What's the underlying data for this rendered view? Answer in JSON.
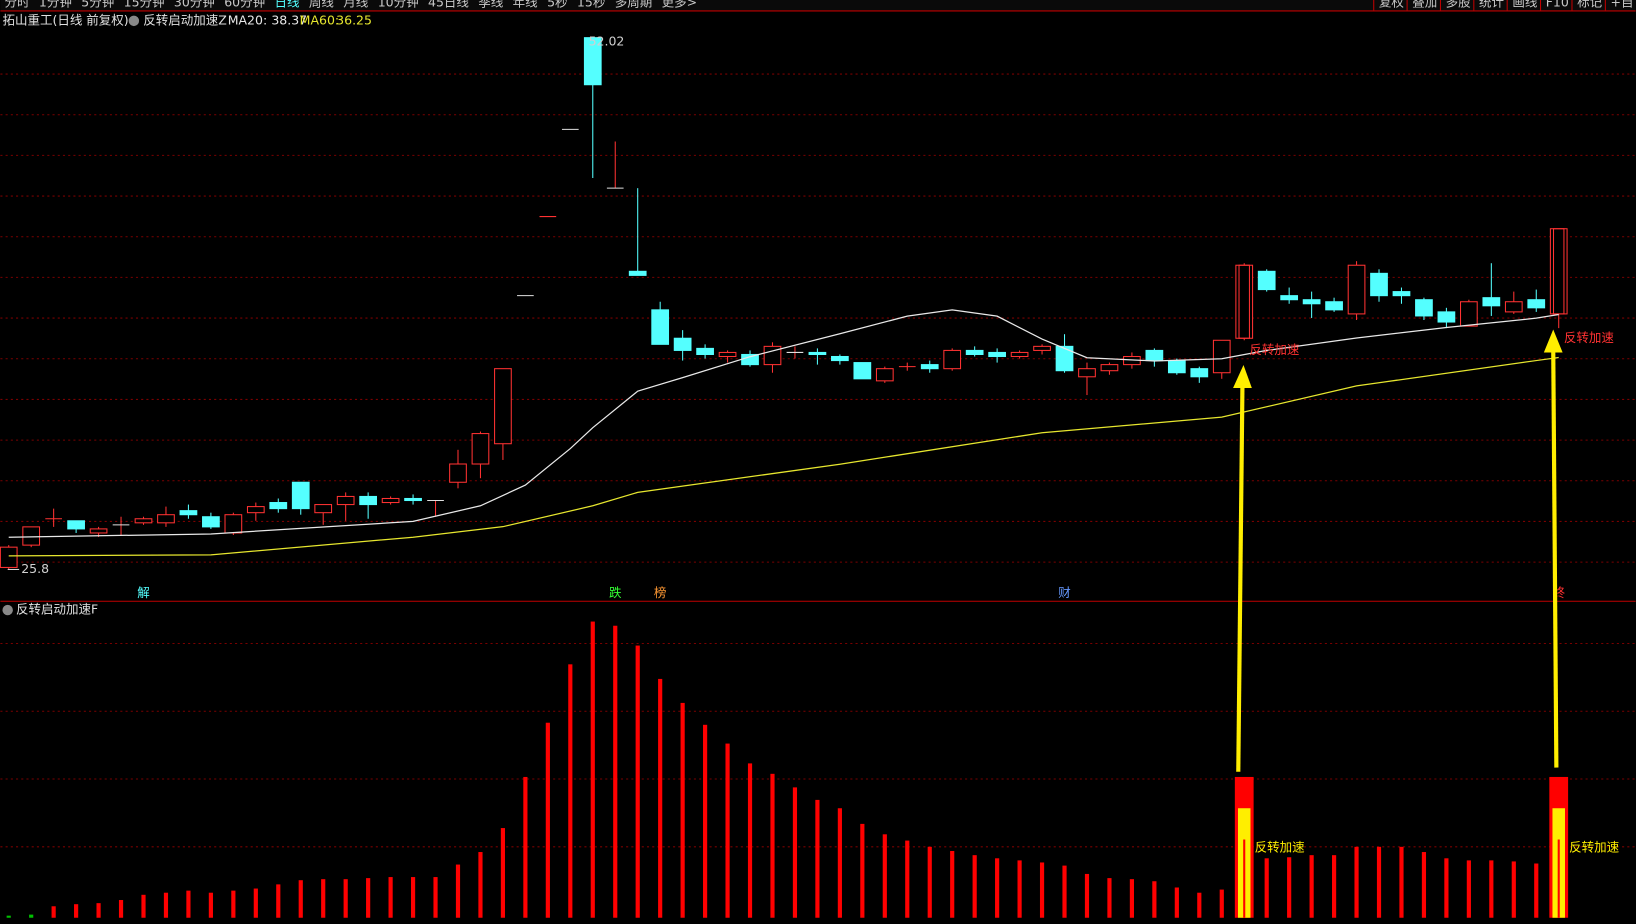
{
  "toolbar": {
    "left": [
      "分时",
      "1分钟",
      "5分钟",
      "15分钟",
      "30分钟",
      "60分钟",
      "日线",
      "周线",
      "月线",
      "10分钟",
      "45日线",
      "季线",
      "年线",
      "5秒",
      "15秒",
      "多周期",
      "更多>"
    ],
    "active": 6,
    "right": [
      "复权",
      "叠加",
      "多股",
      "统计",
      "画线",
      "F10",
      "标记",
      "+自"
    ]
  },
  "chart_data": [
    {
      "type": "candlestick",
      "title": "拓山重工(日线 前复权)",
      "indicator": "反转启动加速Z",
      "up_color": "#ff3232",
      "down_color": "#54ffff",
      "open": [
        25.9,
        27.0,
        28.3,
        28.2,
        27.6,
        28.0,
        28.1,
        28.1,
        28.7,
        28.4,
        27.6,
        28.6,
        29.1,
        30.1,
        28.6,
        29.0,
        29.4,
        29.1,
        29.3,
        29.2,
        30.1,
        31.0,
        32.0,
        39.3,
        43.2,
        47.5,
        52.02,
        44.6,
        40.5,
        38.6,
        37.2,
        36.7,
        36.3,
        36.4,
        35.9,
        36.5,
        36.5,
        36.3,
        36.0,
        35.1,
        35.8,
        35.9,
        35.7,
        36.6,
        36.5,
        36.3,
        36.6,
        36.8,
        35.3,
        35.6,
        35.9,
        36.6,
        36.1,
        35.7,
        35.5,
        37.2,
        40.5,
        39.3,
        39.1,
        39.0,
        38.4,
        40.4,
        39.5,
        39.1,
        38.5,
        37.8,
        39.2,
        38.5,
        39.1,
        38.4
      ],
      "high": [
        27.0,
        27.9,
        28.8,
        28.2,
        27.9,
        28.4,
        28.4,
        28.9,
        29.0,
        28.6,
        28.6,
        29.1,
        29.3,
        30.1,
        29.0,
        29.6,
        29.6,
        29.4,
        29.5,
        29.2,
        31.7,
        32.6,
        35.7,
        39.3,
        43.2,
        47.5,
        52.02,
        46.9,
        44.6,
        39.0,
        37.6,
        36.9,
        36.6,
        36.6,
        37.0,
        36.8,
        36.7,
        36.4,
        36.0,
        35.8,
        36.0,
        36.1,
        36.7,
        36.8,
        36.7,
        36.6,
        36.9,
        37.4,
        36.0,
        36.0,
        36.5,
        36.7,
        36.2,
        35.8,
        37.1,
        40.9,
        40.6,
        39.7,
        39.5,
        39.2,
        41.0,
        40.6,
        39.7,
        39.2,
        38.7,
        39.1,
        40.9,
        39.5,
        39.6,
        42.6
      ],
      "low": [
        25.8,
        26.9,
        27.9,
        27.6,
        27.4,
        27.5,
        28.0,
        27.9,
        28.3,
        27.8,
        27.5,
        28.2,
        28.6,
        28.5,
        28.0,
        28.2,
        28.3,
        29.0,
        29.0,
        28.4,
        29.8,
        30.3,
        31.2,
        39.3,
        43.2,
        47.5,
        45.1,
        44.6,
        40.3,
        36.9,
        36.1,
        36.2,
        36.0,
        35.8,
        35.5,
        36.2,
        35.9,
        35.9,
        35.2,
        35.0,
        35.6,
        35.5,
        35.6,
        36.3,
        36.0,
        36.2,
        36.4,
        35.5,
        34.4,
        35.4,
        35.7,
        35.8,
        35.4,
        35.0,
        35.2,
        37.1,
        39.5,
        38.9,
        38.2,
        38.5,
        38.1,
        39.0,
        38.9,
        38.1,
        37.7,
        37.8,
        38.3,
        38.4,
        38.5,
        37.7
      ],
      "close": [
        26.9,
        27.9,
        28.3,
        27.8,
        27.8,
        28.0,
        28.3,
        28.5,
        28.5,
        27.9,
        28.5,
        28.9,
        28.8,
        28.8,
        29.0,
        29.4,
        29.0,
        29.3,
        29.2,
        29.2,
        31.0,
        32.5,
        35.7,
        39.3,
        43.2,
        47.5,
        49.7,
        44.6,
        40.3,
        36.9,
        36.6,
        36.4,
        36.5,
        35.9,
        36.8,
        36.5,
        36.4,
        36.1,
        35.2,
        35.7,
        35.8,
        35.7,
        36.6,
        36.4,
        36.3,
        36.5,
        36.8,
        35.6,
        35.7,
        35.9,
        36.3,
        36.1,
        35.5,
        35.3,
        37.1,
        40.8,
        39.6,
        39.1,
        38.9,
        38.6,
        40.8,
        39.3,
        39.3,
        38.3,
        38.0,
        39.0,
        38.8,
        39.0,
        38.7,
        42.6
      ],
      "ylim": [
        24.26,
        53.26
      ],
      "series": [
        {
          "name": "MA20:",
          "color": "#e8e8e8",
          "x": [
            0,
            9,
            18,
            21,
            23,
            25,
            26,
            28,
            30,
            33,
            37,
            40,
            42,
            44,
            46,
            48,
            51,
            54,
            56,
            60,
            64,
            68,
            69
          ],
          "values": [
            27.39,
            27.55,
            28.17,
            28.94,
            29.96,
            31.76,
            32.79,
            34.59,
            35.26,
            36.29,
            37.42,
            38.29,
            38.6,
            38.29,
            37.16,
            36.24,
            36.08,
            36.19,
            36.6,
            37.21,
            37.73,
            38.19,
            38.37
          ]
        },
        {
          "name": "MA60:",
          "color": "#e6e62e",
          "x": [
            0,
            9,
            18,
            22,
            26,
            28,
            37,
            46,
            54,
            60,
            68,
            69
          ],
          "values": [
            26.47,
            26.52,
            27.39,
            27.91,
            28.94,
            29.6,
            30.99,
            32.54,
            33.31,
            34.85,
            36.1,
            36.25
          ]
        }
      ],
      "events": [
        {
          "index": 6,
          "label": "解",
          "color": "#54ffff"
        },
        {
          "index": 27,
          "label": "跌",
          "color": "#33ff33"
        },
        {
          "index": 29,
          "label": "榜",
          "color": "#ff9933"
        },
        {
          "index": 47,
          "label": "财",
          "color": "#6699ff"
        },
        {
          "index": 69,
          "label": "终",
          "color": "#ff3232"
        }
      ],
      "signals": [
        {
          "index": 55,
          "label": "反转加速"
        },
        {
          "index": 69,
          "label": "反转加速"
        }
      ]
    },
    {
      "type": "bar",
      "title": "反转启动加速F",
      "color": "#ff0000",
      "color_overrides": {
        "0": "#00c000",
        "1": "#00c000"
      },
      "values": [
        2,
        3,
        11,
        13,
        14,
        17,
        22,
        24,
        26,
        24,
        26,
        28,
        32,
        36,
        37,
        37,
        38,
        39,
        39,
        39,
        51,
        63,
        86,
        135,
        187,
        243,
        284,
        280,
        261,
        229,
        206,
        185,
        167,
        148,
        138,
        125,
        113,
        105,
        90,
        80,
        74,
        68,
        64,
        60,
        57,
        55,
        53,
        50,
        42,
        38,
        37,
        35,
        29,
        24,
        27,
        135,
        57,
        58,
        60,
        60,
        68,
        68,
        68,
        63,
        57,
        55,
        55,
        54,
        52,
        135
      ],
      "ylim": [
        0,
        290
      ],
      "signals": [
        {
          "index": 55,
          "inner": 105,
          "label": "反转加速",
          "color": "#ffee00"
        },
        {
          "index": 69,
          "inner": 105,
          "label": "反转加速",
          "color": "#ffee00"
        }
      ]
    }
  ]
}
